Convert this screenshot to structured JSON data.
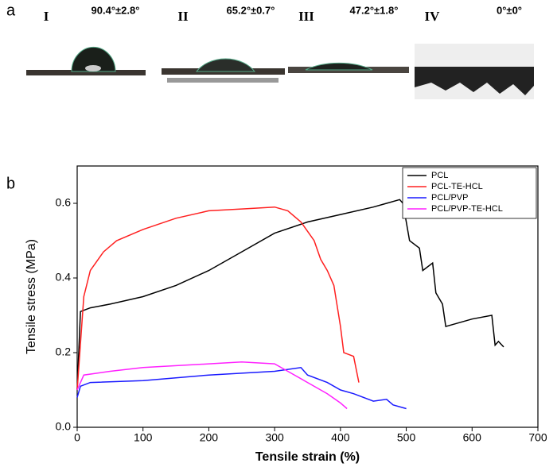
{
  "panel_a": {
    "label": "a",
    "images": [
      {
        "numeral": "I",
        "angle": "90.4°±2.8°"
      },
      {
        "numeral": "II",
        "angle": "65.2°±0.7°"
      },
      {
        "numeral": "III",
        "angle": "47.2°±1.8°"
      },
      {
        "numeral": "IV",
        "angle": "0°±0°"
      }
    ]
  },
  "chart_data": {
    "type": "line",
    "panel_label": "b",
    "x_label": "Tensile strain (%)",
    "y_label": "Tensile stress (MPa)",
    "xlim": [
      0,
      700
    ],
    "xticks": [
      0,
      100,
      200,
      300,
      400,
      500,
      600,
      700
    ],
    "ylim": [
      0,
      0.7
    ],
    "yticks": [
      {
        "value": 0,
        "label": "0.0"
      },
      0.2,
      0.4,
      0.6
    ],
    "legend": "upper right",
    "series": [
      {
        "name": "PCL",
        "color": "#000000",
        "x": [
          0,
          5,
          20,
          50,
          100,
          150,
          200,
          250,
          300,
          350,
          400,
          450,
          470,
          490,
          495,
          500,
          505,
          520,
          525,
          540,
          545,
          555,
          560,
          600,
          630,
          635,
          640,
          648
        ],
        "values": [
          0.1,
          0.31,
          0.32,
          0.33,
          0.35,
          0.38,
          0.42,
          0.47,
          0.52,
          0.55,
          0.57,
          0.59,
          0.6,
          0.61,
          0.6,
          0.55,
          0.5,
          0.48,
          0.42,
          0.44,
          0.36,
          0.33,
          0.27,
          0.29,
          0.3,
          0.22,
          0.23,
          0.215
        ]
      },
      {
        "name": "PCL-TE-HCL",
        "color": "#ff2020",
        "x": [
          0,
          10,
          20,
          40,
          60,
          100,
          150,
          200,
          250,
          300,
          320,
          340,
          360,
          370,
          380,
          390,
          400,
          405,
          420,
          428
        ],
        "values": [
          0.1,
          0.35,
          0.42,
          0.47,
          0.5,
          0.53,
          0.56,
          0.58,
          0.585,
          0.59,
          0.58,
          0.55,
          0.5,
          0.45,
          0.42,
          0.38,
          0.27,
          0.2,
          0.19,
          0.12
        ]
      },
      {
        "name": "PCL/PVP",
        "color": "#1a1aff",
        "x": [
          0,
          5,
          20,
          100,
          200,
          300,
          340,
          350,
          380,
          400,
          420,
          450,
          470,
          480,
          500
        ],
        "values": [
          0.08,
          0.11,
          0.12,
          0.125,
          0.14,
          0.15,
          0.16,
          0.14,
          0.12,
          0.1,
          0.09,
          0.07,
          0.075,
          0.06,
          0.05
        ]
      },
      {
        "name": "PCL/PVP-TE-HCL",
        "color": "#ff20ff",
        "x": [
          0,
          10,
          50,
          100,
          200,
          250,
          300,
          320,
          350,
          380,
          400,
          410
        ],
        "values": [
          0.1,
          0.14,
          0.15,
          0.16,
          0.17,
          0.175,
          0.17,
          0.15,
          0.12,
          0.09,
          0.065,
          0.05
        ]
      }
    ]
  }
}
